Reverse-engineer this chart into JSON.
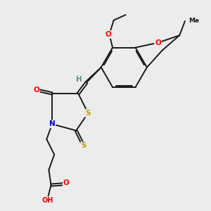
{
  "bg_color": "#ececec",
  "bond_color": "#1a1a1a",
  "atom_colors": {
    "O": "#ff0000",
    "N": "#0000cc",
    "S": "#b8a000",
    "H": "#5c9090",
    "C": "#1a1a1a"
  }
}
